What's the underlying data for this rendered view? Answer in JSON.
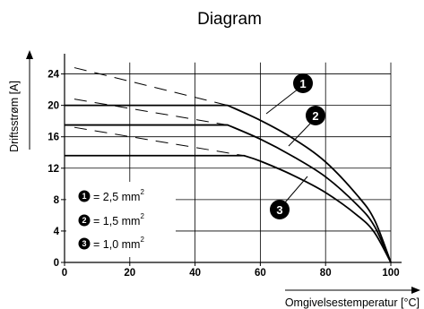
{
  "chart_data": {
    "type": "line",
    "title": "Diagram",
    "xlabel": "Omgivelsestemperatur [°C]",
    "ylabel": "Driftsstrøm [A]",
    "xlim": [
      0,
      100
    ],
    "ylim": [
      0,
      25
    ],
    "x_ticks": [
      0,
      20,
      40,
      60,
      80,
      100
    ],
    "y_ticks": [
      0,
      4,
      8,
      12,
      16,
      20,
      24
    ],
    "grid": true,
    "series": [
      {
        "marker": "1",
        "legend": "= 2,5 mm",
        "exponent": "2",
        "points": [
          [
            0,
            20
          ],
          [
            50,
            20
          ],
          [
            60,
            18.1
          ],
          [
            70,
            15.8
          ],
          [
            80,
            12.8
          ],
          [
            90,
            8.4
          ],
          [
            95,
            5.4
          ],
          [
            100,
            0
          ]
        ]
      },
      {
        "marker": "2",
        "legend": "= 1,5 mm",
        "exponent": "2",
        "points": [
          [
            0,
            17.5
          ],
          [
            50,
            17.5
          ],
          [
            60,
            15.7
          ],
          [
            70,
            13.5
          ],
          [
            80,
            10.9
          ],
          [
            90,
            7.2
          ],
          [
            95,
            4.6
          ],
          [
            100,
            0
          ]
        ]
      },
      {
        "marker": "3",
        "legend": "= 1,0 mm",
        "exponent": "2",
        "points": [
          [
            0,
            13.6
          ],
          [
            55,
            13.6
          ],
          [
            60,
            12.9
          ],
          [
            70,
            11.1
          ],
          [
            80,
            8.9
          ],
          [
            90,
            5.9
          ],
          [
            95,
            3.8
          ],
          [
            100,
            0
          ]
        ]
      }
    ],
    "derating_lines": [
      [
        [
          3,
          24.8
        ],
        [
          50,
          20
        ]
      ],
      [
        [
          3,
          20.8
        ],
        [
          50,
          17.5
        ]
      ],
      [
        [
          3,
          17.2
        ],
        [
          55,
          13.6
        ]
      ]
    ]
  }
}
